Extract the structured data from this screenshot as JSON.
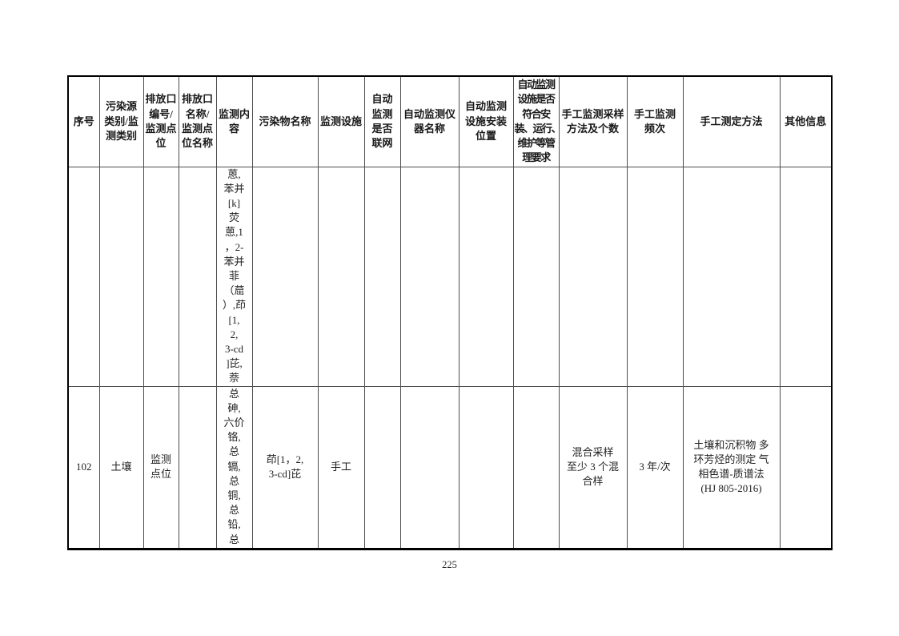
{
  "page_number": "225",
  "colors": {
    "page_bg": "#ffffff",
    "text": "#1f1f1f",
    "grid_line": "#4d4d4d",
    "outer_border": "#000000"
  },
  "table": {
    "headers": [
      "序号",
      "污染源\n类别/监\n测类别",
      "排放口\n编号/\n监测点\n位",
      "排放口\n名称/\n监测点\n位名称",
      "监测内\n容",
      "污染物名称",
      "监测设施",
      "自动\n监测\n是否\n联网",
      "自动监测仪\n器名称",
      "自动监测\n设施安装\n位置",
      "自动监测\n设施是否\n符合安\n装、运行、\n维护等管\n理要求",
      "手工监测采样\n方法及个数",
      "手工监测\n频次",
      "手工测定方法",
      "其他信息"
    ],
    "rows": [
      {
        "cells": [
          "",
          "",
          "",
          "",
          "蒽,\n苯并\n[k]\n荧\n蒽,1\n，2-\n苯并\n菲\n（䓛\n）,茚\n[1,\n2,\n3-cd\n]芘,\n萘",
          "",
          "",
          "",
          "",
          "",
          "",
          "",
          "",
          "",
          ""
        ]
      },
      {
        "cells": [
          "102",
          "土壤",
          "监测\n点位",
          "",
          "总\n砷,\n六价\n铬,\n总\n镉,\n总\n铜,\n总\n铅,\n总",
          "茚[1，2,\n3-cd]芘",
          "手工",
          "",
          "",
          "",
          "",
          "混合采样\n至少 3 个混\n合样",
          "3 年/次",
          "土壤和沉积物 多\n环芳烃的测定 气\n相色谱-质谱法\n(HJ 805-2016)",
          ""
        ]
      }
    ]
  }
}
